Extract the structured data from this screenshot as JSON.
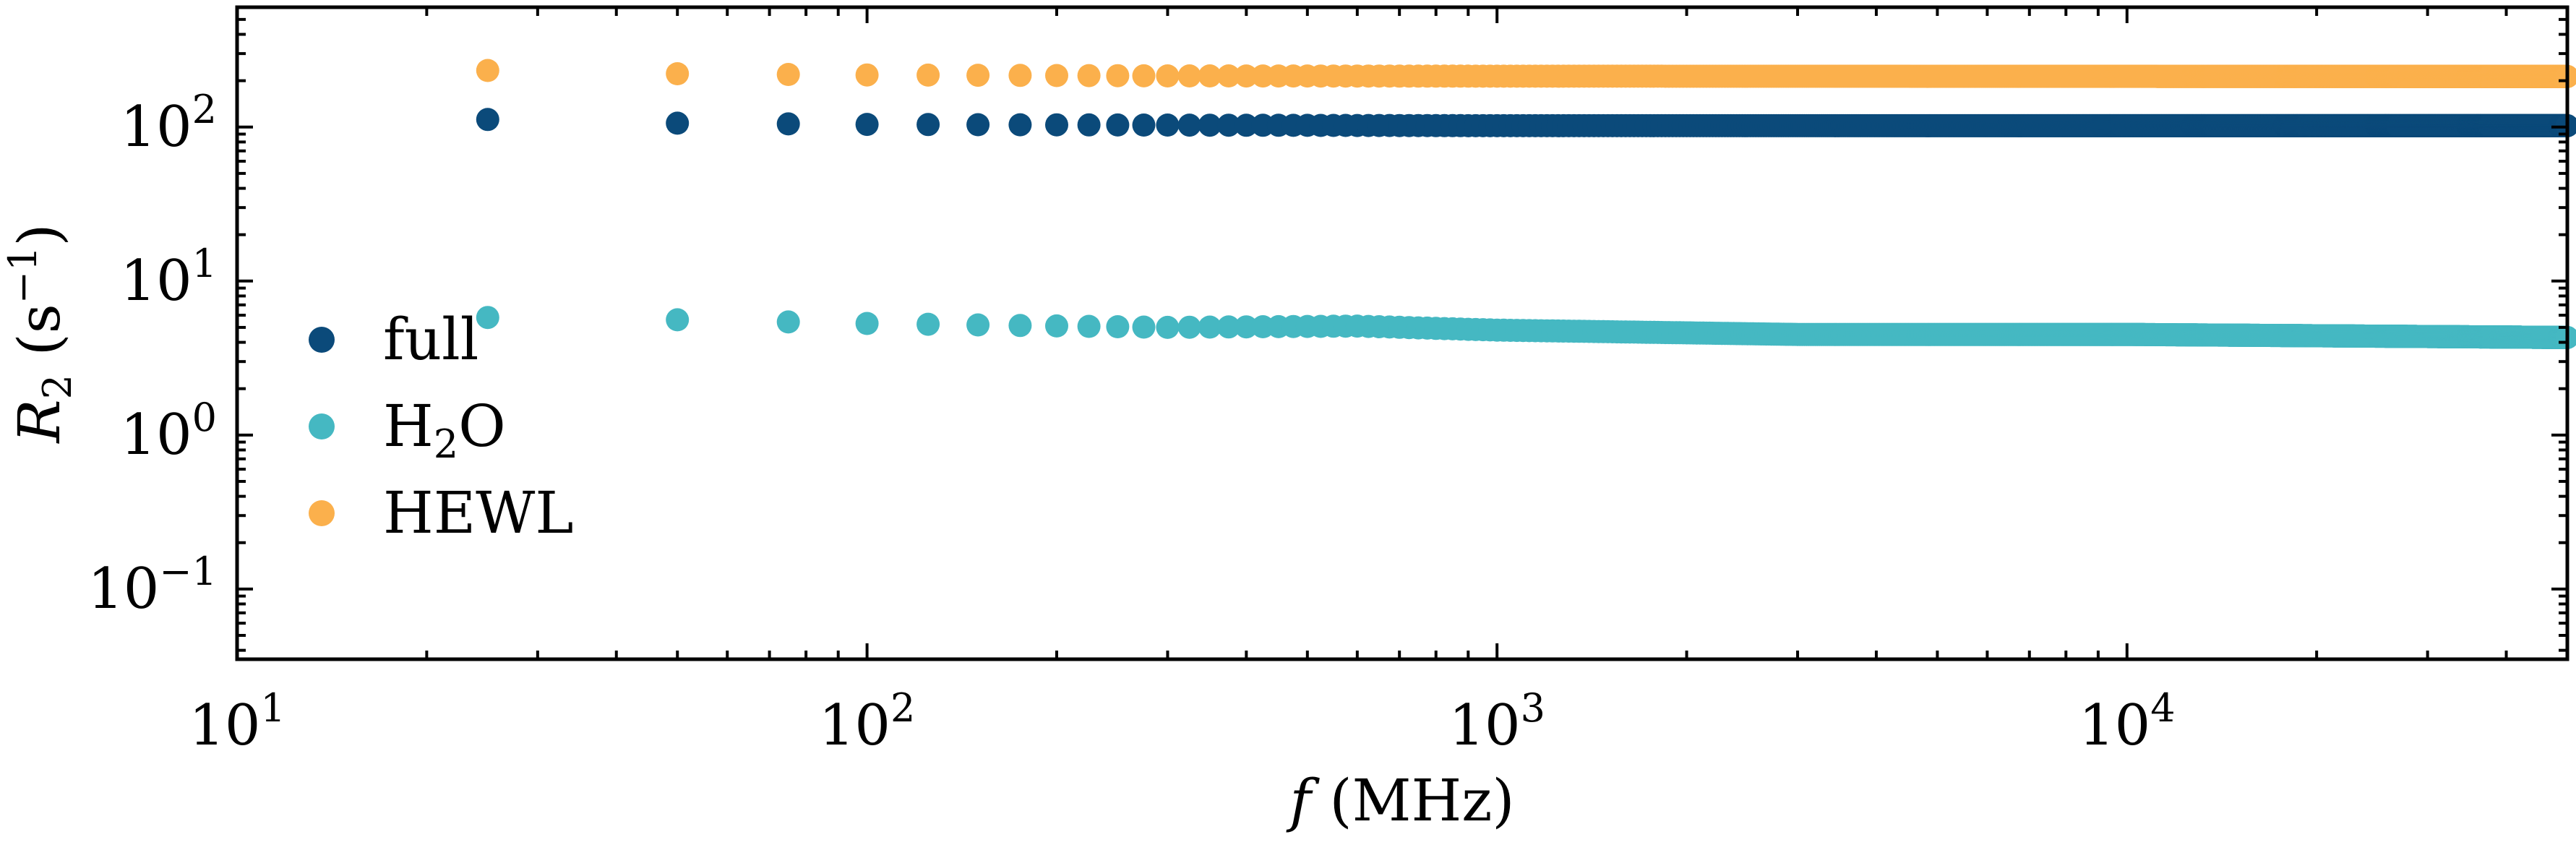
{
  "chart_data": {
    "type": "scatter",
    "title": "",
    "xlabel": {
      "var": "f",
      "unit": "(MHz)"
    },
    "ylabel": {
      "var": "R",
      "sub": "2",
      "unit_open": "(s",
      "unit_sup": "−1",
      "unit_close": ")"
    },
    "xscale": "log",
    "yscale": "log",
    "xlim": [
      10,
      50000
    ],
    "ylim": [
      0.035,
      600
    ],
    "xticks": [
      {
        "value": 10,
        "base": "10",
        "exp": "1"
      },
      {
        "value": 100,
        "base": "10",
        "exp": "2"
      },
      {
        "value": 1000,
        "base": "10",
        "exp": "3"
      },
      {
        "value": 10000,
        "base": "10",
        "exp": "4"
      }
    ],
    "yticks": [
      {
        "value": 0.1,
        "base": "10",
        "exp": "−1"
      },
      {
        "value": 1,
        "base": "10",
        "exp": "0"
      },
      {
        "value": 10,
        "base": "10",
        "exp": "1"
      },
      {
        "value": 100,
        "base": "10",
        "exp": "2"
      }
    ],
    "grid": false,
    "legend_position": "center-left",
    "x_sampling": {
      "start": 25,
      "step": 25,
      "end": 50000
    },
    "series": [
      {
        "name": "full",
        "label": {
          "text": "full"
        },
        "color": "#0b4a7a",
        "anchors": [
          [
            25,
            112
          ],
          [
            50,
            106
          ],
          [
            100,
            104
          ],
          [
            300,
            103
          ],
          [
            1000,
            102
          ],
          [
            50000,
            102
          ]
        ]
      },
      {
        "name": "H2O",
        "label": {
          "text": "H",
          "sub": "2",
          "tail": "O"
        },
        "color": "#45b8c2",
        "anchors": [
          [
            25,
            5.8
          ],
          [
            50,
            5.6
          ],
          [
            100,
            5.3
          ],
          [
            300,
            5.0
          ],
          [
            600,
            5.1
          ],
          [
            1000,
            4.8
          ],
          [
            3000,
            4.5
          ],
          [
            10000,
            4.5
          ],
          [
            50000,
            4.3
          ]
        ]
      },
      {
        "name": "HEWL",
        "label": {
          "text": "HEWL"
        },
        "color": "#fbb04c",
        "anchors": [
          [
            25,
            233
          ],
          [
            50,
            222
          ],
          [
            100,
            218
          ],
          [
            300,
            215
          ],
          [
            1000,
            214
          ],
          [
            50000,
            213
          ]
        ]
      }
    ]
  }
}
